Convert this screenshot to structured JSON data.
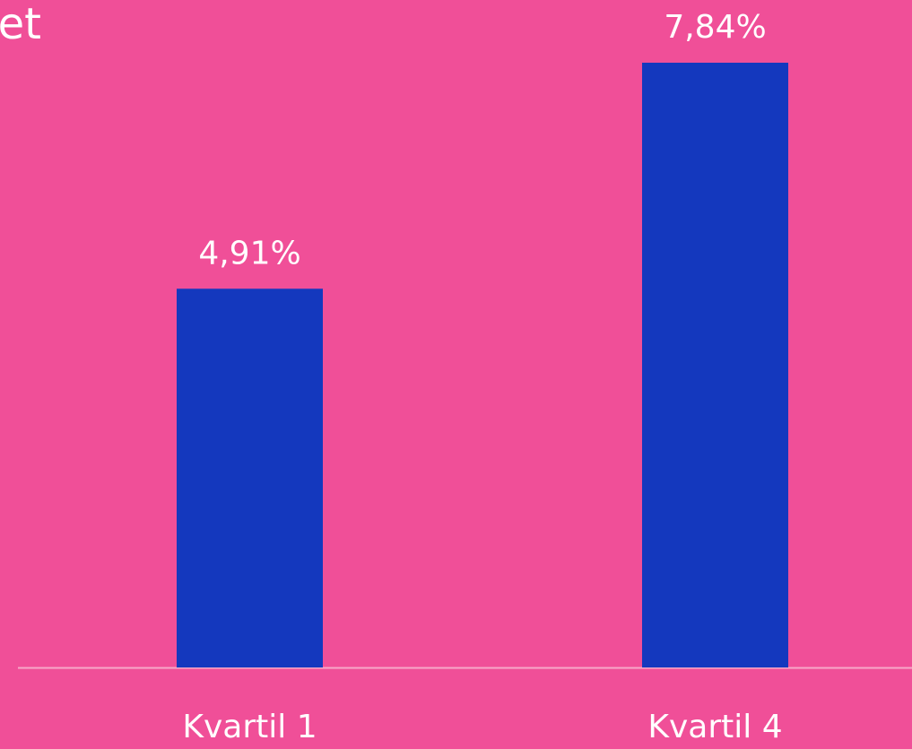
{
  "chart_data": {
    "type": "bar",
    "title": "et",
    "categories": [
      "Kvartil 1",
      "Kvartil 4"
    ],
    "values": [
      4.91,
      7.84
    ],
    "value_labels": [
      "4,91%",
      "7,84%"
    ],
    "color": "#1438be"
  }
}
